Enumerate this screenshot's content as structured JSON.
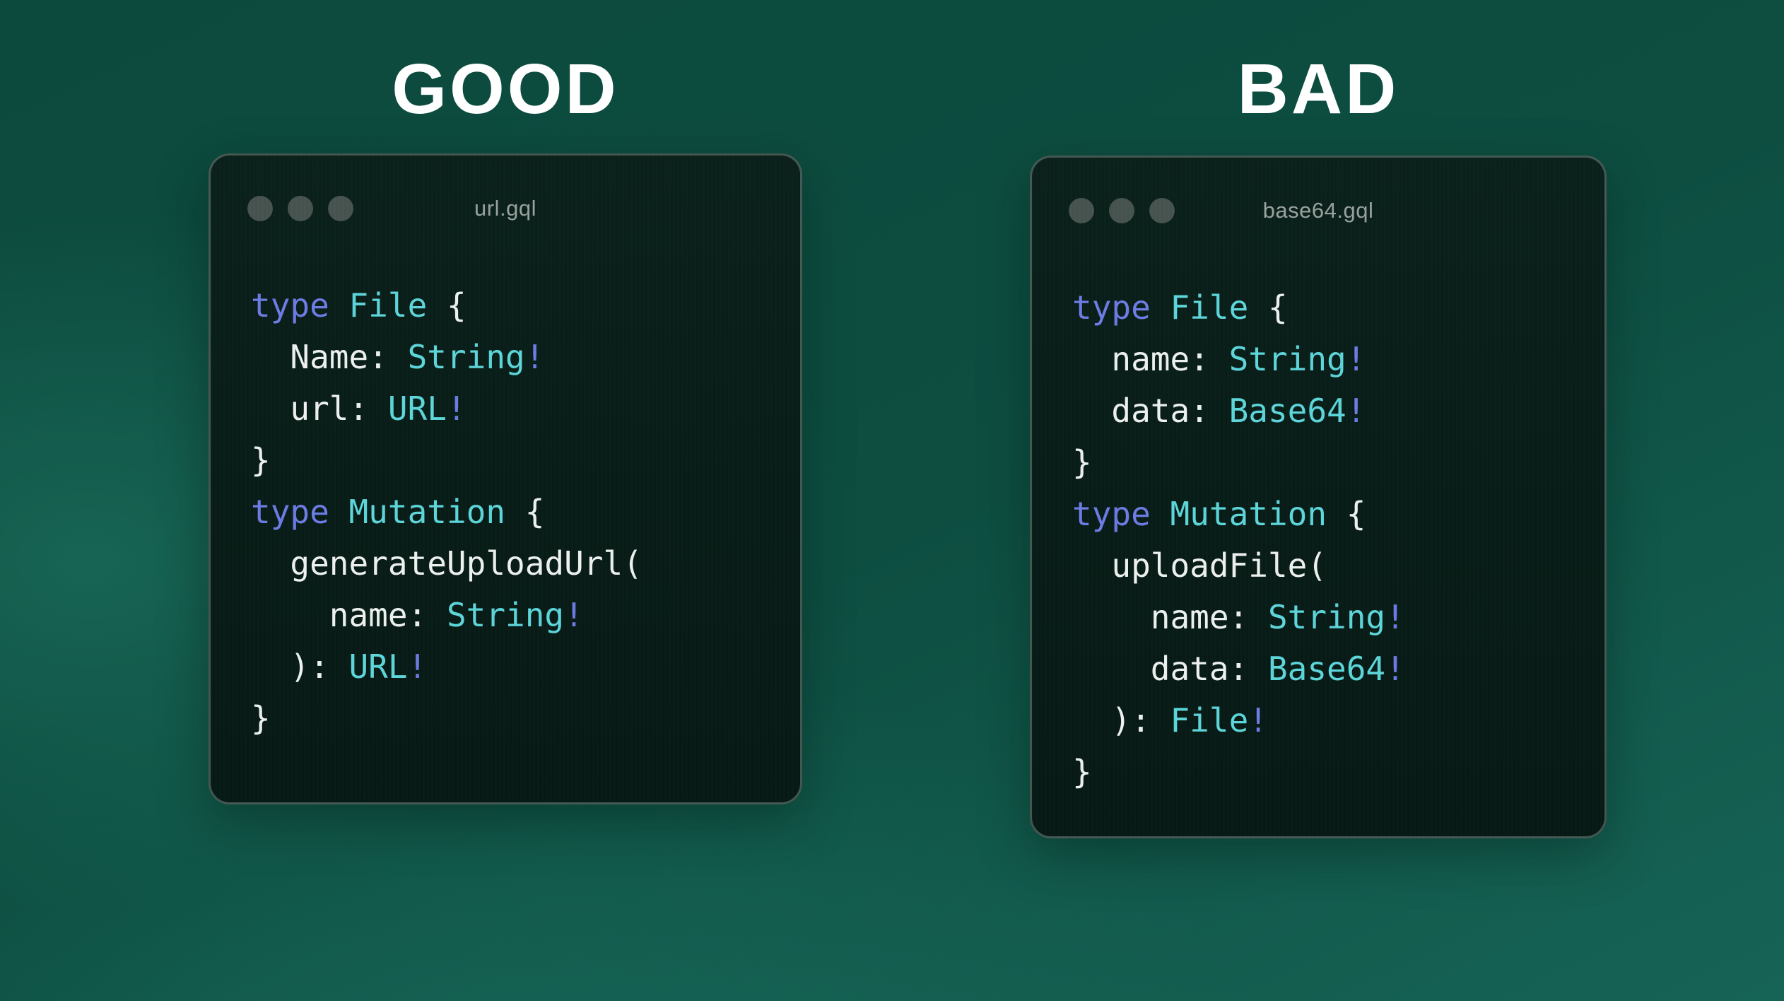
{
  "colors": {
    "background_top": "#0c4a3d",
    "background_bottom_left": "#166456",
    "window_background": "#081d18",
    "window_border": "#5a6a63",
    "traffic_dot": "#46534e",
    "window_title_text": "#99a39e",
    "code_plain": "#edf2f0",
    "code_keyword": "#6d7ce5",
    "code_type": "#5cd6da",
    "heading_text": "#ffffff"
  },
  "panels": [
    {
      "heading": "GOOD",
      "window": {
        "title": "url.gql",
        "traffic_light_count": 3,
        "code": [
          [
            {
              "t": "type",
              "c": "keyword"
            },
            {
              "t": " ",
              "c": "plain"
            },
            {
              "t": "File",
              "c": "type"
            },
            {
              "t": " {",
              "c": "plain"
            }
          ],
          [
            {
              "t": "  Name: ",
              "c": "plain"
            },
            {
              "t": "String",
              "c": "type"
            },
            {
              "t": "!",
              "c": "keyword"
            }
          ],
          [
            {
              "t": "  url: ",
              "c": "plain"
            },
            {
              "t": "URL",
              "c": "type"
            },
            {
              "t": "!",
              "c": "keyword"
            }
          ],
          [
            {
              "t": "}",
              "c": "plain"
            }
          ],
          [
            {
              "t": "type",
              "c": "keyword"
            },
            {
              "t": " ",
              "c": "plain"
            },
            {
              "t": "Mutation",
              "c": "type"
            },
            {
              "t": " {",
              "c": "plain"
            }
          ],
          [
            {
              "t": "  generateUploadUrl(",
              "c": "plain"
            }
          ],
          [
            {
              "t": "    name: ",
              "c": "plain"
            },
            {
              "t": "String",
              "c": "type"
            },
            {
              "t": "!",
              "c": "keyword"
            }
          ],
          [
            {
              "t": "  ): ",
              "c": "plain"
            },
            {
              "t": "URL",
              "c": "type"
            },
            {
              "t": "!",
              "c": "keyword"
            }
          ],
          [
            {
              "t": "}",
              "c": "plain"
            }
          ]
        ]
      }
    },
    {
      "heading": "BAD",
      "window": {
        "title": "base64.gql",
        "traffic_light_count": 3,
        "code": [
          [
            {
              "t": "type",
              "c": "keyword"
            },
            {
              "t": " ",
              "c": "plain"
            },
            {
              "t": "File",
              "c": "type"
            },
            {
              "t": " {",
              "c": "plain"
            }
          ],
          [
            {
              "t": "  name: ",
              "c": "plain"
            },
            {
              "t": "String",
              "c": "type"
            },
            {
              "t": "!",
              "c": "keyword"
            }
          ],
          [
            {
              "t": "  data: ",
              "c": "plain"
            },
            {
              "t": "Base64",
              "c": "type"
            },
            {
              "t": "!",
              "c": "keyword"
            }
          ],
          [
            {
              "t": "}",
              "c": "plain"
            }
          ],
          [
            {
              "t": "type",
              "c": "keyword"
            },
            {
              "t": " ",
              "c": "plain"
            },
            {
              "t": "Mutation",
              "c": "type"
            },
            {
              "t": " {",
              "c": "plain"
            }
          ],
          [
            {
              "t": "  uploadFile(",
              "c": "plain"
            }
          ],
          [
            {
              "t": "    name: ",
              "c": "plain"
            },
            {
              "t": "String",
              "c": "type"
            },
            {
              "t": "!",
              "c": "keyword"
            }
          ],
          [
            {
              "t": "    data: ",
              "c": "plain"
            },
            {
              "t": "Base64",
              "c": "type"
            },
            {
              "t": "!",
              "c": "keyword"
            }
          ],
          [
            {
              "t": "  ): ",
              "c": "plain"
            },
            {
              "t": "File",
              "c": "type"
            },
            {
              "t": "!",
              "c": "keyword"
            }
          ],
          [
            {
              "t": "}",
              "c": "plain"
            }
          ]
        ]
      }
    }
  ]
}
